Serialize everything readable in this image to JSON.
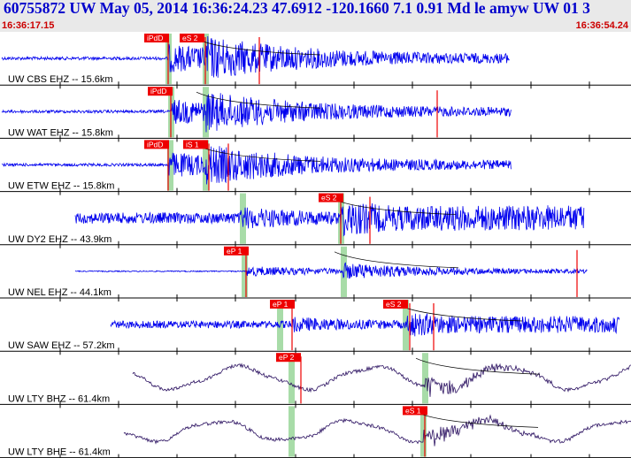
{
  "header": {
    "title": "60755872 UW May 05, 2014 16:36:24.23   47.6912 -120.1660  7.1 0.91 Md le amyw UW 01   3",
    "start_time": "16:36:17.15",
    "end_time": "16:36:54.24"
  },
  "colors": {
    "header_bg": "#e9e9e9",
    "title": "#0000cc",
    "time": "#cc0000",
    "trace_blue": "#0000ee",
    "trace_purple": "#2a1060",
    "pick_red": "#ee0000",
    "green_band": "#a8dca8"
  },
  "traces": [
    {
      "label": "UW CBS EHZ -- 15.6km",
      "color": "blue",
      "picks": [
        {
          "text": "iPdD"
        },
        {
          "text": "eS 2"
        }
      ]
    },
    {
      "label": "UW WAT EHZ -- 15.8km",
      "color": "blue",
      "picks": [
        {
          "text": "iPdD"
        }
      ]
    },
    {
      "label": "UW ETW EHZ -- 15.8km",
      "color": "blue",
      "picks": [
        {
          "text": "iPdD"
        },
        {
          "text": "iS 1"
        }
      ]
    },
    {
      "label": "UW DY2 EHZ -- 43.9km",
      "color": "blue",
      "picks": [
        {
          "text": "eS 2"
        }
      ]
    },
    {
      "label": "UW NEL EHZ -- 44.1km",
      "color": "blue",
      "picks": [
        {
          "text": "eP 1"
        }
      ]
    },
    {
      "label": "UW SAW EHZ -- 57.2km",
      "color": "blue",
      "picks": [
        {
          "text": "eP 1"
        },
        {
          "text": "eS 2"
        }
      ]
    },
    {
      "label": "UW LTY BHZ -- 61.4km",
      "color": "purple",
      "picks": [
        {
          "text": "eP 2"
        }
      ]
    },
    {
      "label": "UW LTY BHE -- 61.4km",
      "color": "purple",
      "picks": [
        {
          "text": "eS 1"
        }
      ]
    }
  ]
}
